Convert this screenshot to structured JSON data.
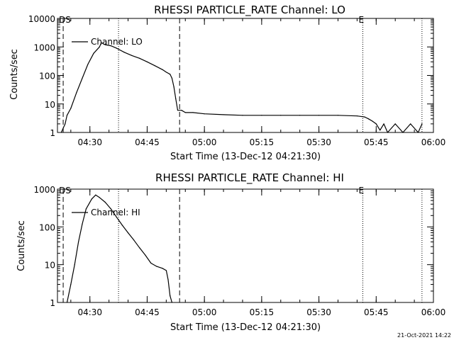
{
  "footer_timestamp": "21-Oct-2021 14:22",
  "chart_data": [
    {
      "type": "line",
      "title": "RHESSI PARTICLE_RATE Channel: LO",
      "xlabel": "Start Time (13-Dec-12 04:21:30)",
      "ylabel": "Counts/sec",
      "y_scale": "log",
      "ylim": [
        1,
        10000
      ],
      "y_ticks": [
        {
          "value": 1,
          "label": "1"
        },
        {
          "value": 10,
          "label": "10"
        },
        {
          "value": 100,
          "label": "100"
        },
        {
          "value": 1000,
          "label": "1000"
        },
        {
          "value": 10000,
          "label": "10000"
        }
      ],
      "xlim": [
        "04:21:30",
        "06:00:00"
      ],
      "x_ticks": [
        "04:30",
        "04:45",
        "05:00",
        "05:15",
        "05:30",
        "05:45",
        "06:00"
      ],
      "markers": [
        {
          "time": "04:23:00",
          "style": "dashed",
          "label": "DS"
        },
        {
          "time": "04:37:30",
          "style": "dotted",
          "label": ""
        },
        {
          "time": "04:53:30",
          "style": "dashed",
          "label": ""
        },
        {
          "time": "05:41:30",
          "style": "dotted",
          "label": "E"
        },
        {
          "time": "05:57:00",
          "style": "dotted",
          "label": ""
        }
      ],
      "legend": {
        "entry": "Channel: LO",
        "placement": "top-left"
      },
      "series": [
        {
          "name": "Channel: LO",
          "points": [
            [
              "04:22:30",
              1
            ],
            [
              "04:23:30",
              2
            ],
            [
              "04:24:00",
              4
            ],
            [
              "04:25:00",
              7
            ],
            [
              "04:26:30",
              25
            ],
            [
              "04:28:00",
              80
            ],
            [
              "04:29:30",
              250
            ],
            [
              "04:31:00",
              600
            ],
            [
              "04:32:30",
              1000
            ],
            [
              "04:33:00",
              1400
            ],
            [
              "04:34:00",
              1200
            ],
            [
              "04:35:30",
              1100
            ],
            [
              "04:37:00",
              900
            ],
            [
              "04:39:00",
              650
            ],
            [
              "04:41:00",
              500
            ],
            [
              "04:43:00",
              400
            ],
            [
              "04:45:00",
              300
            ],
            [
              "04:47:00",
              220
            ],
            [
              "04:49:00",
              160
            ],
            [
              "04:50:00",
              130
            ],
            [
              "04:51:00",
              110
            ],
            [
              "04:51:30",
              80
            ],
            [
              "04:52:00",
              40
            ],
            [
              "04:52:30",
              15
            ],
            [
              "04:53:00",
              6
            ],
            [
              "04:54:00",
              6
            ],
            [
              "04:55:00",
              5
            ],
            [
              "04:57:00",
              5
            ],
            [
              "05:00:00",
              4.5
            ],
            [
              "05:05:00",
              4.2
            ],
            [
              "05:10:00",
              4
            ],
            [
              "05:15:00",
              4
            ],
            [
              "05:20:00",
              4
            ],
            [
              "05:25:00",
              4
            ],
            [
              "05:30:00",
              4
            ],
            [
              "05:35:00",
              4
            ],
            [
              "05:40:00",
              3.8
            ],
            [
              "05:42:00",
              3.5
            ],
            [
              "05:43:00",
              3
            ],
            [
              "05:44:00",
              2.5
            ],
            [
              "05:45:00",
              2
            ],
            [
              "05:46:00",
              1.2
            ],
            [
              "05:47:00",
              2
            ],
            [
              "05:48:00",
              1
            ],
            [
              "05:50:00",
              2
            ],
            [
              "05:52:00",
              1
            ],
            [
              "05:54:00",
              2
            ],
            [
              "05:56:00",
              1
            ],
            [
              "05:57:00",
              2
            ]
          ]
        }
      ]
    },
    {
      "type": "line",
      "title": "RHESSI PARTICLE_RATE Channel: HI",
      "xlabel": "Start Time (13-Dec-12 04:21:30)",
      "ylabel": "Counts/sec",
      "y_scale": "log",
      "ylim": [
        1,
        1000
      ],
      "y_ticks": [
        {
          "value": 1,
          "label": "1"
        },
        {
          "value": 10,
          "label": "10"
        },
        {
          "value": 100,
          "label": "100"
        },
        {
          "value": 1000,
          "label": "1000"
        }
      ],
      "xlim": [
        "04:21:30",
        "06:00:00"
      ],
      "x_ticks": [
        "04:30",
        "04:45",
        "05:00",
        "05:15",
        "05:30",
        "05:45",
        "06:00"
      ],
      "markers": [
        {
          "time": "04:23:00",
          "style": "dashed",
          "label": "DS"
        },
        {
          "time": "04:37:30",
          "style": "dotted",
          "label": ""
        },
        {
          "time": "04:53:30",
          "style": "dashed",
          "label": ""
        },
        {
          "time": "05:41:30",
          "style": "dotted",
          "label": "E"
        },
        {
          "time": "05:57:00",
          "style": "dotted",
          "label": ""
        }
      ],
      "legend": {
        "entry": "Channel: HI",
        "placement": "top-left"
      },
      "series": [
        {
          "name": "Channel: HI",
          "points": [
            [
              "04:24:00",
              1
            ],
            [
              "04:25:00",
              3
            ],
            [
              "04:26:00",
              10
            ],
            [
              "04:27:00",
              40
            ],
            [
              "04:28:00",
              120
            ],
            [
              "04:29:00",
              300
            ],
            [
              "04:30:30",
              550
            ],
            [
              "04:31:30",
              700
            ],
            [
              "04:32:30",
              600
            ],
            [
              "04:34:00",
              450
            ],
            [
              "04:35:30",
              300
            ],
            [
              "04:37:00",
              180
            ],
            [
              "04:38:30",
              110
            ],
            [
              "04:40:00",
              70
            ],
            [
              "04:41:30",
              45
            ],
            [
              "04:43:00",
              28
            ],
            [
              "04:44:30",
              18
            ],
            [
              "04:46:00",
              11
            ],
            [
              "04:47:30",
              9
            ],
            [
              "04:49:00",
              8
            ],
            [
              "04:50:00",
              7
            ],
            [
              "04:50:30",
              4
            ],
            [
              "04:51:00",
              1.5
            ],
            [
              "04:51:30",
              1
            ]
          ]
        }
      ]
    }
  ]
}
